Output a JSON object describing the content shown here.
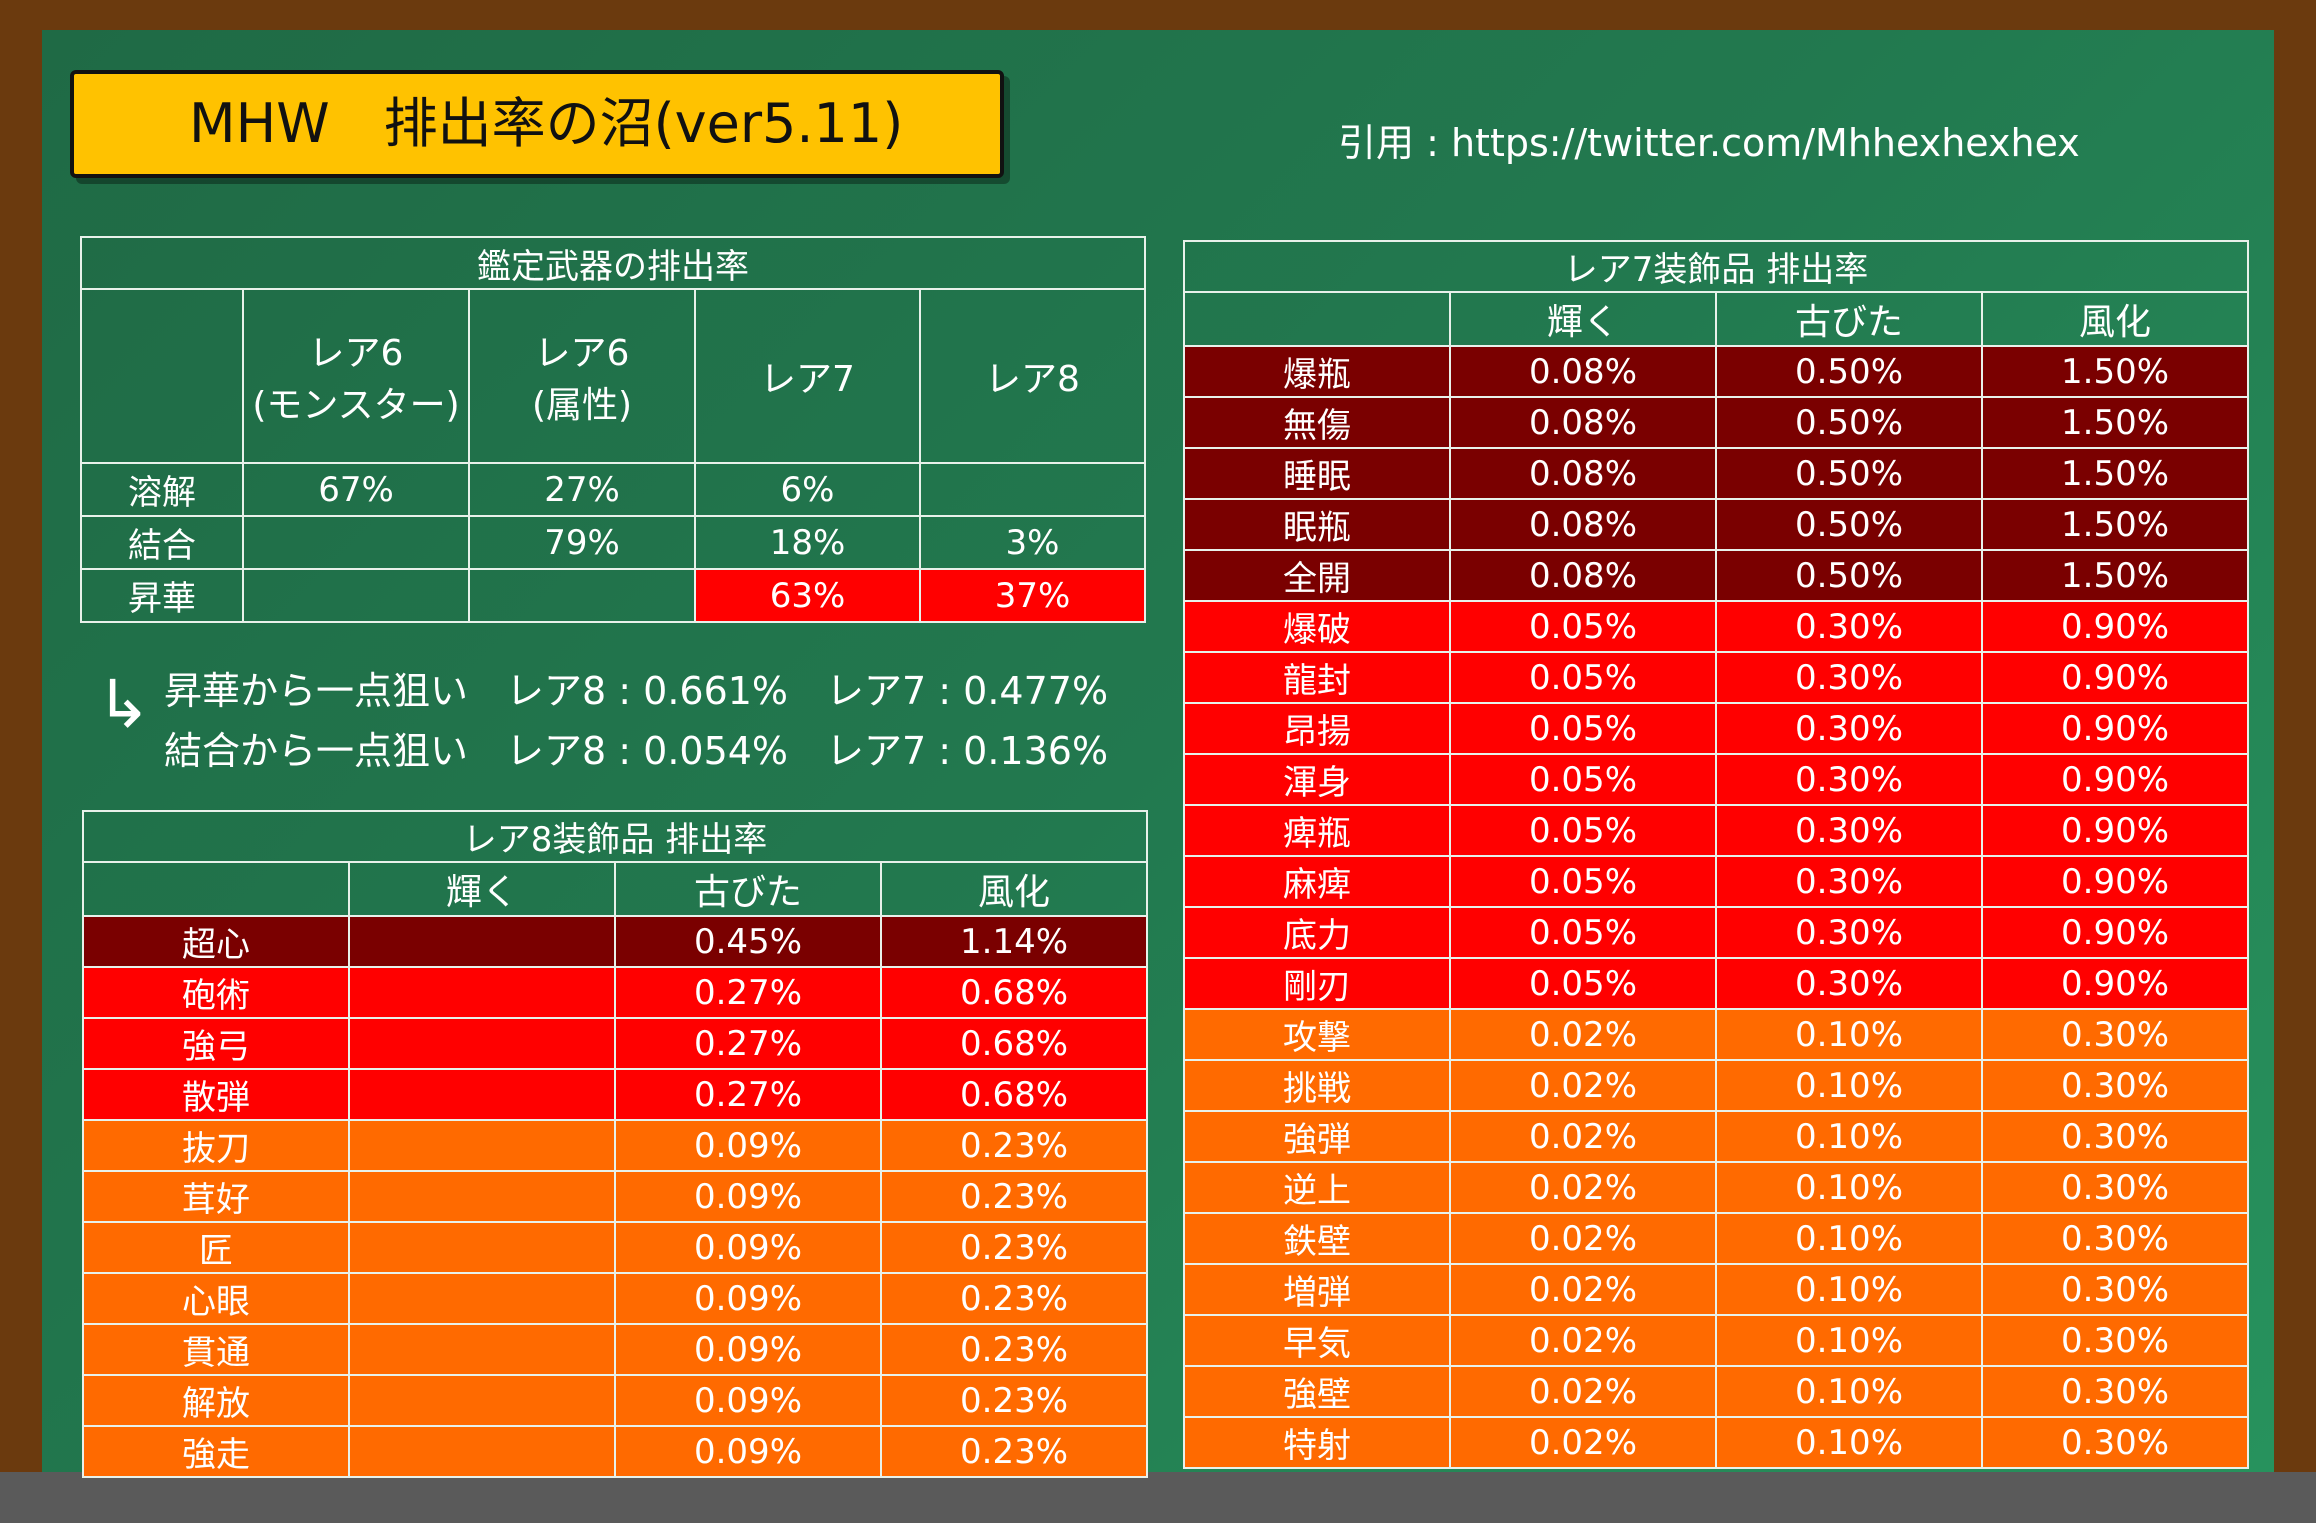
{
  "title": "MHW　排出率の沼(ver5.11)",
  "citation": "引用 : https://twitter.com/Mhhexhexhex",
  "appraisal": {
    "caption": "鑑定武器の排出率",
    "columns": [
      {
        "line1": "レア6",
        "line2": "(モンスター)"
      },
      {
        "line1": "レア6",
        "line2": "(属性)"
      },
      {
        "line1": "レア7",
        "line2": ""
      },
      {
        "line1": "レア8",
        "line2": ""
      }
    ],
    "rows": [
      {
        "name": "溶解",
        "values": [
          "67%",
          "27%",
          "6%",
          ""
        ]
      },
      {
        "name": "結合",
        "values": [
          "",
          "79%",
          "18%",
          "3%"
        ]
      },
      {
        "name": "昇華",
        "values": [
          "",
          "",
          "63%",
          "37%"
        ]
      }
    ]
  },
  "notes": {
    "arrow": "↳",
    "line1": "昇華から一点狙い　レア8 : 0.661%　レア7 : 0.477%",
    "line2": "結合から一点狙い　レア8 : 0.054%　レア7 : 0.136%"
  },
  "rare8": {
    "caption": "レア8装飾品 排出率",
    "columns": [
      "輝く",
      "古びた",
      "風化"
    ],
    "rows": [
      {
        "name": "超心",
        "values": [
          "",
          "0.45%",
          "1.14%"
        ],
        "tier": "dark"
      },
      {
        "name": "砲術",
        "values": [
          "",
          "0.27%",
          "0.68%"
        ],
        "tier": "red"
      },
      {
        "name": "強弓",
        "values": [
          "",
          "0.27%",
          "0.68%"
        ],
        "tier": "red"
      },
      {
        "name": "散弾",
        "values": [
          "",
          "0.27%",
          "0.68%"
        ],
        "tier": "red"
      },
      {
        "name": "抜刀",
        "values": [
          "",
          "0.09%",
          "0.23%"
        ],
        "tier": "orange"
      },
      {
        "name": "茸好",
        "values": [
          "",
          "0.09%",
          "0.23%"
        ],
        "tier": "orange"
      },
      {
        "name": "匠",
        "values": [
          "",
          "0.09%",
          "0.23%"
        ],
        "tier": "orange"
      },
      {
        "name": "心眼",
        "values": [
          "",
          "0.09%",
          "0.23%"
        ],
        "tier": "orange"
      },
      {
        "name": "貫通",
        "values": [
          "",
          "0.09%",
          "0.23%"
        ],
        "tier": "orange"
      },
      {
        "name": "解放",
        "values": [
          "",
          "0.09%",
          "0.23%"
        ],
        "tier": "orange"
      },
      {
        "name": "強走",
        "values": [
          "",
          "0.09%",
          "0.23%"
        ],
        "tier": "orange"
      }
    ]
  },
  "rare7": {
    "caption": "レア7装飾品 排出率",
    "columns": [
      "輝く",
      "古びた",
      "風化"
    ],
    "rows": [
      {
        "name": "爆瓶",
        "values": [
          "0.08%",
          "0.50%",
          "1.50%"
        ],
        "tier": "dark"
      },
      {
        "name": "無傷",
        "values": [
          "0.08%",
          "0.50%",
          "1.50%"
        ],
        "tier": "dark"
      },
      {
        "name": "睡眠",
        "values": [
          "0.08%",
          "0.50%",
          "1.50%"
        ],
        "tier": "dark"
      },
      {
        "name": "眠瓶",
        "values": [
          "0.08%",
          "0.50%",
          "1.50%"
        ],
        "tier": "dark"
      },
      {
        "name": "全開",
        "values": [
          "0.08%",
          "0.50%",
          "1.50%"
        ],
        "tier": "dark"
      },
      {
        "name": "爆破",
        "values": [
          "0.05%",
          "0.30%",
          "0.90%"
        ],
        "tier": "red"
      },
      {
        "name": "龍封",
        "values": [
          "0.05%",
          "0.30%",
          "0.90%"
        ],
        "tier": "red"
      },
      {
        "name": "昂揚",
        "values": [
          "0.05%",
          "0.30%",
          "0.90%"
        ],
        "tier": "red"
      },
      {
        "name": "渾身",
        "values": [
          "0.05%",
          "0.30%",
          "0.90%"
        ],
        "tier": "red"
      },
      {
        "name": "痺瓶",
        "values": [
          "0.05%",
          "0.30%",
          "0.90%"
        ],
        "tier": "red"
      },
      {
        "name": "麻痺",
        "values": [
          "0.05%",
          "0.30%",
          "0.90%"
        ],
        "tier": "red"
      },
      {
        "name": "底力",
        "values": [
          "0.05%",
          "0.30%",
          "0.90%"
        ],
        "tier": "red"
      },
      {
        "name": "剛刃",
        "values": [
          "0.05%",
          "0.30%",
          "0.90%"
        ],
        "tier": "red"
      },
      {
        "name": "攻撃",
        "values": [
          "0.02%",
          "0.10%",
          "0.30%"
        ],
        "tier": "orange"
      },
      {
        "name": "挑戦",
        "values": [
          "0.02%",
          "0.10%",
          "0.30%"
        ],
        "tier": "orange"
      },
      {
        "name": "強弾",
        "values": [
          "0.02%",
          "0.10%",
          "0.30%"
        ],
        "tier": "orange"
      },
      {
        "name": "逆上",
        "values": [
          "0.02%",
          "0.10%",
          "0.30%"
        ],
        "tier": "orange"
      },
      {
        "name": "鉄壁",
        "values": [
          "0.02%",
          "0.10%",
          "0.30%"
        ],
        "tier": "orange"
      },
      {
        "name": "増弾",
        "values": [
          "0.02%",
          "0.10%",
          "0.30%"
        ],
        "tier": "orange"
      },
      {
        "name": "早気",
        "values": [
          "0.02%",
          "0.10%",
          "0.30%"
        ],
        "tier": "orange"
      },
      {
        "name": "強壁",
        "values": [
          "0.02%",
          "0.10%",
          "0.30%"
        ],
        "tier": "orange"
      },
      {
        "name": "特射",
        "values": [
          "0.02%",
          "0.10%",
          "0.30%"
        ],
        "tier": "orange"
      }
    ]
  },
  "colors": {
    "board": "#22794f",
    "frame": "#6b3a0e",
    "title_bg": "#ffc200",
    "tier_dark": "#7a0000",
    "tier_red": "#ff0000",
    "tier_orange": "#ff6a00"
  }
}
